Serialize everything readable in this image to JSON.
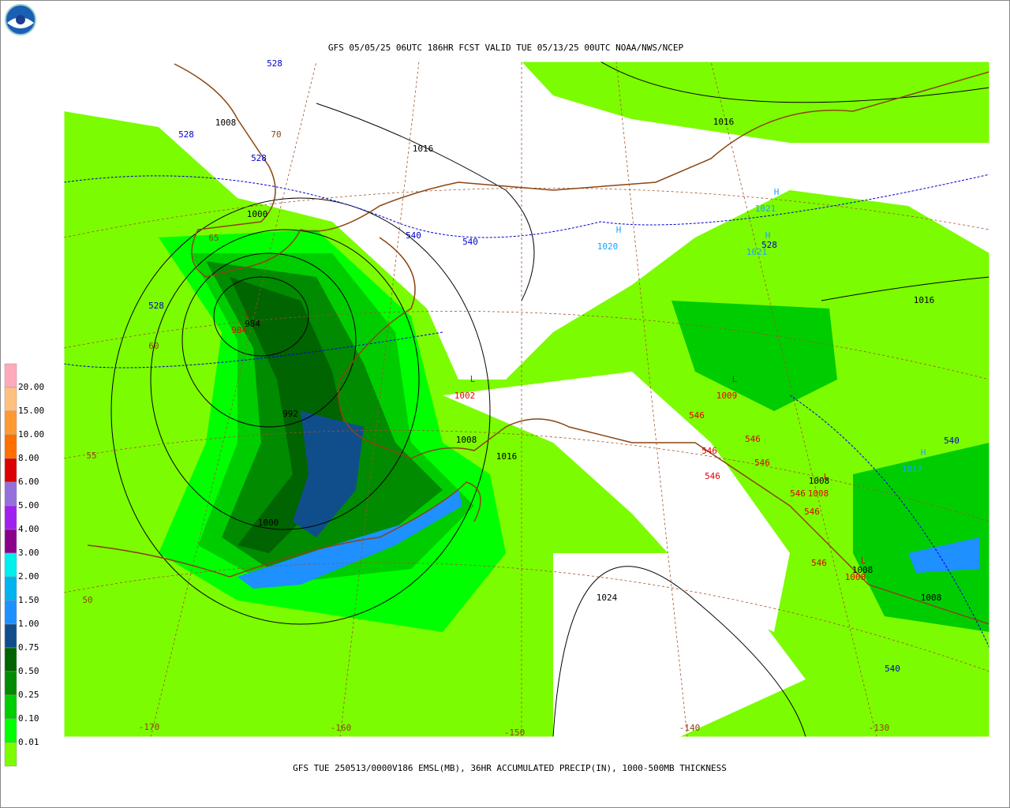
{
  "header": {
    "title": "GFS 05/05/25 06UTC 186HR FCST VALID TUE 05/13/25 00UTC NOAA/NWS/NCEP"
  },
  "footer": {
    "caption": "GFS TUE 250513/0000V186 EMSL(MB), 36HR ACCUMULATED PRECIP(IN), 1000-500MB THICKNESS"
  },
  "legend": {
    "labels": [
      "20.00",
      "15.00",
      "10.00",
      "8.00",
      "6.00",
      "5.00",
      "4.00",
      "3.00",
      "2.00",
      "1.50",
      "1.00",
      "0.75",
      "0.50",
      "0.25",
      "0.10",
      "0.01"
    ]
  },
  "map": {
    "isobar_labels": [
      "1008",
      "1016",
      "1000",
      "984",
      "992",
      "1008",
      "1016",
      "1000",
      "1024",
      "1016",
      "1016",
      "1008",
      "1008",
      "1008"
    ],
    "thickness_labels": [
      "528",
      "528",
      "528",
      "540",
      "540",
      "528",
      "528",
      "540",
      "540"
    ],
    "warm_thickness_labels": [
      "546",
      "546",
      "546",
      "546",
      "546",
      "546",
      "546",
      "546"
    ],
    "highs": [
      {
        "symbol": "H",
        "pressure": "1020"
      },
      {
        "symbol": "H",
        "pressure": "1021"
      },
      {
        "symbol": "H",
        "pressure": "1021"
      },
      {
        "symbol": "H",
        "pressure": "1017"
      }
    ],
    "lows": [
      {
        "symbol": "L",
        "pressure": "1002"
      },
      {
        "symbol": "L",
        "pressure": "1009"
      },
      {
        "symbol": "L",
        "pressure": "984"
      },
      {
        "symbol": "L",
        "pressure": "1008"
      },
      {
        "symbol": "L",
        "pressure": "1008"
      }
    ],
    "grid_labels": [
      "70",
      "65",
      "60",
      "55",
      "50",
      "-170",
      "-160",
      "-150",
      "-140",
      "-130"
    ]
  }
}
